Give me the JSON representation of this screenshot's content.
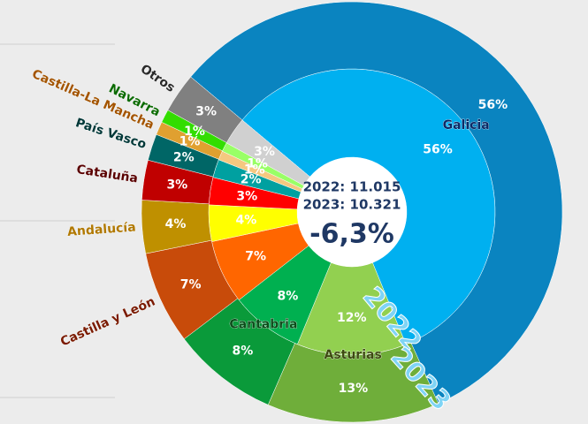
{
  "chart_data": {
    "type": "donut",
    "categories": [
      "Galicia",
      "Asturias",
      "Cantabria",
      "Castilla y León",
      "Andalucía",
      "Cataluña",
      "País Vasco",
      "Castilla-La Mancha",
      "Navarra",
      "Otros"
    ],
    "label_colors": [
      "#0b2a66",
      "#3d4a10",
      "#0b4d1a",
      "#7a1a00",
      "#b07800",
      "#5a0000",
      "#003838",
      "#a35400",
      "#0a6a00",
      "#2a2a2a"
    ],
    "series": [
      {
        "name": "2022",
        "values": [
          56,
          12,
          8,
          7,
          4,
          3,
          2,
          1,
          1,
          3
        ],
        "value_labels": [
          "56%",
          "12%",
          "8%",
          "7%",
          "4%",
          "3%",
          "2%",
          "1%",
          "1%",
          "3%"
        ],
        "colors": [
          "#00b0f0",
          "#92d050",
          "#00b050",
          "#ff6600",
          "#ffff00",
          "#ff0000",
          "#00a0a0",
          "#f5c880",
          "#99ff66",
          "#d0d0d0"
        ]
      },
      {
        "name": "2023",
        "values": [
          56,
          13,
          8,
          7,
          4,
          3,
          2,
          1,
          1,
          3
        ],
        "value_labels": [
          "56%",
          "13%",
          "8%",
          "7%",
          "4%",
          "3%",
          "2%",
          "1%",
          "1%",
          "3%"
        ],
        "colors": [
          "#0a84c0",
          "#6fae3a",
          "#0a9a3a",
          "#c84b0a",
          "#bf9000",
          "#c00000",
          "#006666",
          "#e0a030",
          "#33dd00",
          "#808080"
        ]
      }
    ],
    "center_lines": [
      "2022: 11.015",
      "2023: 10.321"
    ],
    "center_change": "-6,3%"
  }
}
